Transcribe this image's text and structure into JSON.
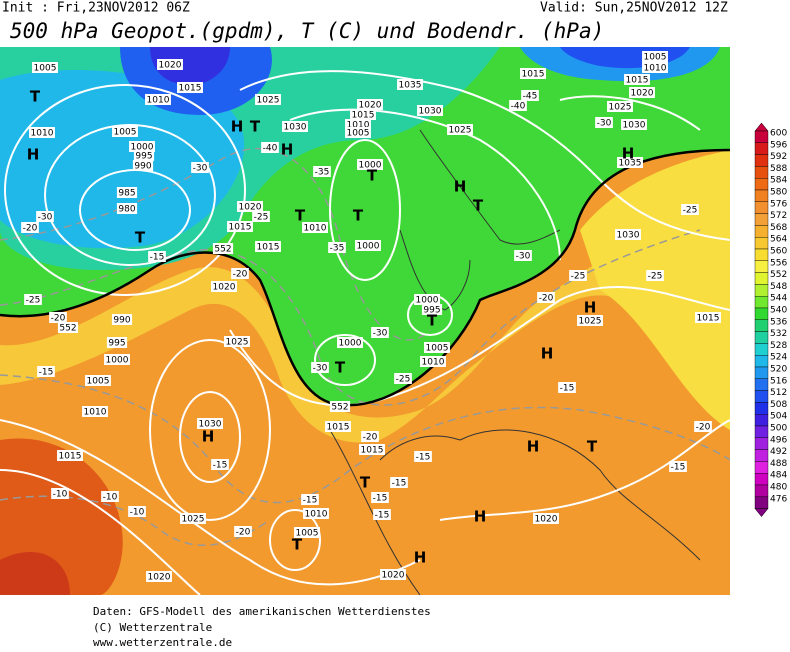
{
  "header": {
    "init": "Init : Fri,23NOV2012 06Z",
    "valid": "Valid: Sun,25NOV2012 12Z",
    "title": "500 hPa Geopot.(gpdm), T (C) und Bodendr. (hPa)"
  },
  "colorbar": {
    "levels": [
      "600",
      "596",
      "592",
      "588",
      "584",
      "580",
      "576",
      "572",
      "568",
      "564",
      "560",
      "556",
      "552",
      "548",
      "544",
      "540",
      "536",
      "532",
      "528",
      "524",
      "520",
      "516",
      "512",
      "508",
      "504",
      "500",
      "496",
      "492",
      "488",
      "484",
      "480",
      "476"
    ],
    "colors": [
      "#c8003c",
      "#d81a1a",
      "#e03010",
      "#e85010",
      "#ee6a14",
      "#f08020",
      "#f29030",
      "#f4a038",
      "#f6b030",
      "#f8c830",
      "#f8dc30",
      "#f8f040",
      "#e0f430",
      "#b0f030",
      "#70e830",
      "#30d830",
      "#20d070",
      "#20d0a0",
      "#20d0d0",
      "#20b8e8",
      "#2098f0",
      "#2070f0",
      "#2050f0",
      "#2030e8",
      "#4020e0",
      "#7020e0",
      "#a020e0",
      "#c020e0",
      "#e020e0",
      "#d000c0",
      "#b000a0",
      "#800080"
    ]
  },
  "map": {
    "isobar_labels": [
      "1005",
      "1020",
      "1015",
      "1010",
      "1010",
      "1005",
      "1000",
      "995",
      "990",
      "985",
      "980",
      "1025",
      "1030",
      "1035",
      "1030",
      "1020",
      "1015",
      "1010",
      "1005",
      "1025",
      "1000",
      "1020",
      "1015",
      "1015",
      "1010",
      "1000",
      "1020",
      "990",
      "995",
      "1000",
      "1005",
      "1010",
      "1025",
      "1000",
      "995",
      "1000",
      "1005",
      "1010",
      "1015",
      "1015",
      "1030",
      "1015",
      "1025",
      "1010",
      "1005",
      "1020",
      "1020",
      "1020",
      "1025",
      "1015",
      "1030",
      "1035",
      "1025",
      "1030",
      "1015",
      "1020",
      "1015",
      "1010",
      "1005"
    ],
    "temperature_labels": [
      "-30",
      "-20",
      "-25",
      "-20",
      "-15",
      "-10",
      "-10",
      "-10",
      "-15",
      "-20",
      "-15",
      "-20",
      "-15",
      "-15",
      "-15",
      "-15",
      "-15",
      "-15",
      "-20",
      "-25",
      "-25",
      "-25",
      "-20",
      "-30",
      "-30",
      "-25",
      "-30",
      "-35",
      "-25",
      "-30",
      "-15",
      "-40",
      "-35",
      "-30",
      "-40",
      "-45",
      "-20"
    ],
    "centers": [
      "T",
      "H",
      "H",
      "T",
      "H",
      "T",
      "T",
      "T",
      "T",
      "H",
      "T",
      "T",
      "T",
      "H",
      "H",
      "H",
      "H",
      "T",
      "H",
      "T",
      "H",
      "T",
      "H"
    ],
    "height_labels": [
      "552",
      "552",
      "552"
    ]
  },
  "footer": [
    "Daten: GFS-Modell des amerikanischen Wetterdienstes",
    "(C) Wetterzentrale",
    "www.wetterzentrale.de"
  ]
}
